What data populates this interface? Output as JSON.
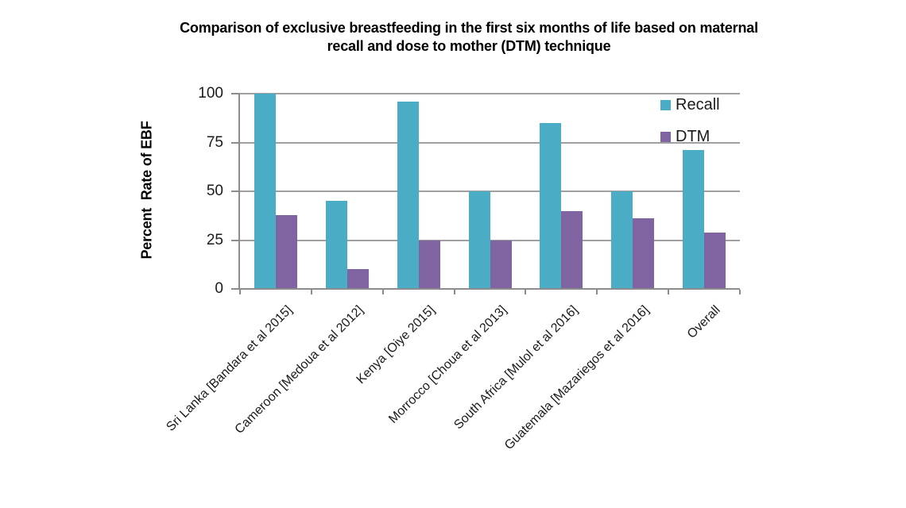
{
  "header": {
    "title_line1": "Comparison of exclusive breastfeeding in the first six months of life based on maternal",
    "title_line2": "recall and dose to mother (DTM) technique"
  },
  "chart_data": {
    "type": "bar",
    "title": "Comparison of exclusive breastfeeding in the first six months of life based on maternal recall and dose to mother (DTM) technique",
    "xlabel": "",
    "ylabel": "Percent  Rate of EBF",
    "categories": [
      "Sri Lanka [Bandara et al 2015]",
      "Cameroon [Medoua et al 2012]",
      "Kenya [Oiye 2015]",
      "Morrocco [Choua et al 2013]",
      "South Africa [Mulol et al 2016]",
      "Guatemala [Mazariegos et al 2016]",
      "Overall"
    ],
    "series": [
      {
        "name": "Recall",
        "color": "#4BACC6",
        "values": [
          100,
          45,
          96,
          50,
          85,
          50,
          71
        ]
      },
      {
        "name": "DTM",
        "color": "#8064A2",
        "values": [
          38,
          10,
          25,
          25,
          40,
          36,
          29
        ]
      }
    ],
    "ylim": [
      0,
      100
    ],
    "yticks": [
      0,
      25,
      50,
      75,
      100
    ],
    "grid": true,
    "legend_position": "top-right",
    "colors": {
      "gridline": "#a0a0a0",
      "axis": "#8c8c8c",
      "text": "#1a1a1a"
    }
  }
}
